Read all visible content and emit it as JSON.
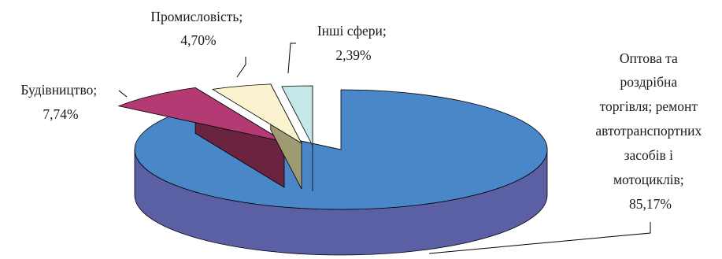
{
  "chart_data": {
    "type": "pie",
    "style": "3d-exploded",
    "slices": [
      {
        "label_lines": [
          "Оптова та",
          "роздрібна",
          "торгівля; ремонт",
          "автотранспортних",
          "засобів і",
          "мотоциклів;",
          "85,17%"
        ],
        "value": 85.17,
        "top_color": "#4a87c8",
        "side_color": "#5b5fa3"
      },
      {
        "label_lines": [
          "Будівництво;",
          "7,74%"
        ],
        "value": 7.74,
        "top_color": "#b43a74",
        "side_color": "#6b2440"
      },
      {
        "label_lines": [
          "Промисловість;",
          "4,70%"
        ],
        "value": 4.7,
        "top_color": "#fbf3cf",
        "side_color": "#9e9a72"
      },
      {
        "label_lines": [
          "Інші сфери;",
          "2,39%"
        ],
        "value": 2.39,
        "top_color": "#c4e7ea",
        "side_color": "#5f8b8b"
      }
    ]
  }
}
